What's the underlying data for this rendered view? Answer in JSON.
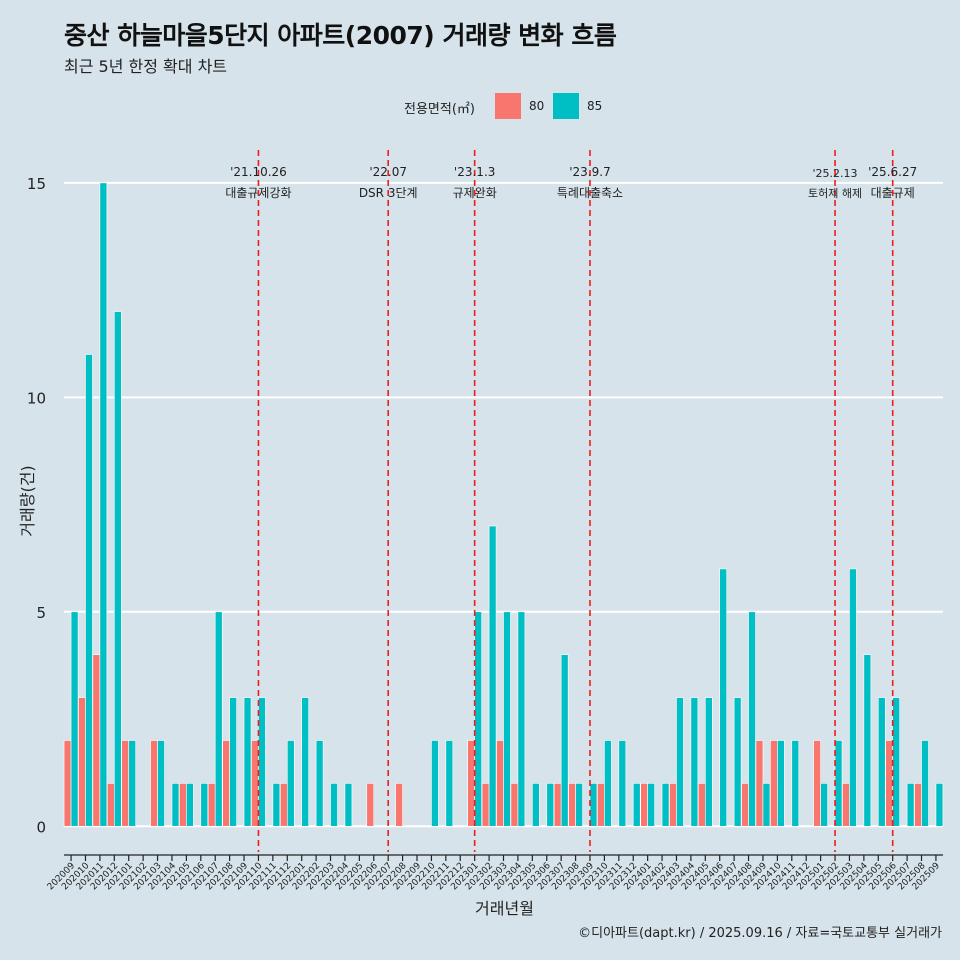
{
  "title": "중산 하늘마을5단지 아파트(2007) 거래량 변화 흐름",
  "subtitle": "최근 5년 한정 확대 차트",
  "legend": {
    "title": "전용면적(㎡)",
    "items": [
      {
        "label": "80",
        "color": "#f8766d"
      },
      {
        "label": "85",
        "color": "#00bfc4"
      }
    ]
  },
  "caption": "©디아파트(dapt.kr) / 2025.09.16 / 자료=국토교통부 실거래가",
  "chart_data": {
    "type": "bar",
    "title": "중산 하늘마을5단지 아파트(2007) 거래량 변화 흐름",
    "xlabel": "거래년월",
    "ylabel": "거래량(건)",
    "ylim": [
      -0.6,
      16
    ],
    "yticks": [
      0,
      5,
      10,
      15
    ],
    "categories": [
      "202009",
      "202010",
      "202011",
      "202012",
      "202101",
      "202102",
      "202103",
      "202104",
      "202105",
      "202106",
      "202107",
      "202108",
      "202109",
      "202110",
      "202111",
      "202112",
      "202201",
      "202202",
      "202203",
      "202204",
      "202205",
      "202206",
      "202207",
      "202208",
      "202209",
      "202210",
      "202211",
      "202212",
      "202301",
      "202302",
      "202303",
      "202304",
      "202305",
      "202306",
      "202307",
      "202308",
      "202309",
      "202310",
      "202311",
      "202312",
      "202401",
      "202402",
      "202403",
      "202404",
      "202405",
      "202406",
      "202407",
      "202408",
      "202409",
      "202410",
      "202411",
      "202412",
      "202501",
      "202502",
      "202503",
      "202504",
      "202505",
      "202506",
      "202507",
      "202508",
      "202509"
    ],
    "series": [
      {
        "name": "80",
        "color": "#f8766d",
        "values": [
          2,
          3,
          4,
          1,
          2,
          0,
          2,
          0,
          1,
          0,
          1,
          2,
          0,
          2,
          0,
          1,
          0,
          0,
          0,
          0,
          0,
          1,
          0,
          1,
          0,
          0,
          0,
          0,
          2,
          1,
          2,
          1,
          0,
          0,
          1,
          1,
          0,
          1,
          0,
          0,
          1,
          0,
          1,
          0,
          1,
          0,
          0,
          1,
          2,
          2,
          0,
          0,
          2,
          0,
          1,
          0,
          0,
          2,
          0,
          1,
          0
        ]
      },
      {
        "name": "85",
        "color": "#00bfc4",
        "values": [
          5,
          11,
          15,
          12,
          2,
          0,
          2,
          1,
          1,
          1,
          5,
          3,
          3,
          3,
          1,
          2,
          3,
          2,
          1,
          1,
          0,
          0,
          0,
          0,
          0,
          2,
          2,
          0,
          5,
          7,
          5,
          5,
          1,
          1,
          4,
          1,
          1,
          2,
          2,
          1,
          1,
          1,
          3,
          3,
          3,
          6,
          3,
          5,
          1,
          2,
          2,
          0,
          1,
          2,
          6,
          4,
          3,
          3,
          1,
          2,
          1
        ]
      }
    ],
    "events": [
      {
        "date": "'21.10.26",
        "label": "대출규제강화",
        "x": "202110"
      },
      {
        "date": "'22.07",
        "label": "DSR 3단계",
        "x": "202207"
      },
      {
        "date": "'23.1.3",
        "label": "규제완화",
        "x": "202301"
      },
      {
        "date": "'23.9.7",
        "label": "특례대출축소",
        "x": "202309"
      },
      {
        "date": "'25.2.13",
        "label": "토허제 해제",
        "x": "202502"
      },
      {
        "date": "'25.6.27",
        "label": "대출규제",
        "x": "202506"
      }
    ]
  }
}
